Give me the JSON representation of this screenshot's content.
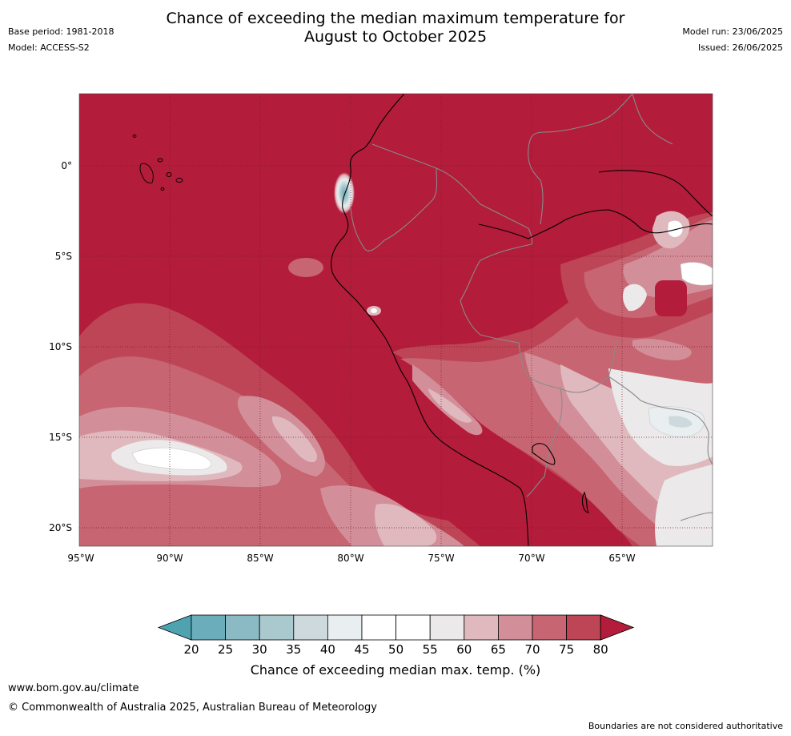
{
  "title_line1": "Chance of exceeding the median maximum temperature for",
  "title_line2": "August to October 2025",
  "meta_left": {
    "base_period": "Base period: 1981-2018",
    "model": "Model: ACCESS-S2"
  },
  "meta_right": {
    "model_run": "Model run: 23/06/2025",
    "issued": "Issued: 26/06/2025"
  },
  "map": {
    "lat_ticks": [
      "0°",
      "5°S",
      "10°S",
      "15°S",
      "20°S"
    ],
    "lon_ticks": [
      "95°W",
      "90°W",
      "85°W",
      "80°W",
      "75°W",
      "70°W",
      "65°W"
    ],
    "lon_range": [
      -95,
      -60
    ],
    "lat_range": [
      -21,
      4
    ],
    "background_color": "#b31c3a"
  },
  "colorbar": {
    "title": "Chance of exceeding median max. temp. (%)",
    "ticks": [
      "20",
      "25",
      "30",
      "35",
      "40",
      "45",
      "50",
      "55",
      "60",
      "65",
      "70",
      "75",
      "80"
    ],
    "colors": [
      "#4fa3b1",
      "#6badba",
      "#8bbac4",
      "#a9c9cf",
      "#cdd9dc",
      "#e9eef0",
      "#ffffff",
      "#ffffff",
      "#ebe9e9",
      "#e0b9bf",
      "#d38f99",
      "#c76572",
      "#bd4556",
      "#b31c3a"
    ]
  },
  "footer": {
    "url": "www.bom.gov.au/climate",
    "copyright": "© Commonwealth of Australia 2025, Australian Bureau of Meteorology",
    "note": "Boundaries are not considered authoritative"
  }
}
